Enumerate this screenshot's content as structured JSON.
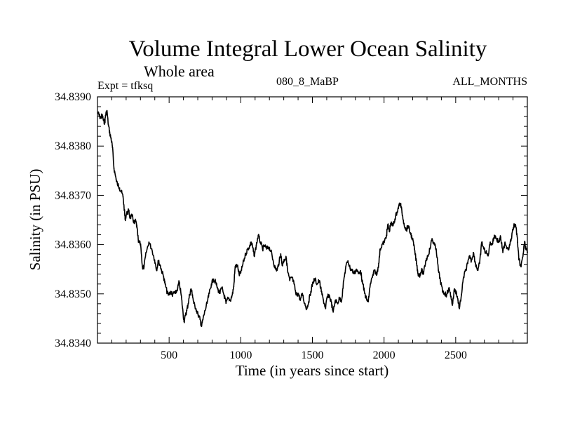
{
  "chart_data": {
    "type": "line",
    "title": "Volume Integral Lower Ocean Salinity",
    "subtitle": "Whole area",
    "annotations": {
      "experiment": "Expt = tfksq",
      "case": "080_8_MaBP",
      "months": "ALL_MONTHS"
    },
    "xlabel": "Time (in years since start)",
    "ylabel": "Salinity (in PSU)",
    "xlim": [
      0,
      3000
    ],
    "ylim": [
      34.834,
      34.839
    ],
    "x_ticks": [
      500,
      1000,
      1500,
      2000,
      2500
    ],
    "x_tick_labels": [
      "500",
      "1000",
      "1500",
      "2000",
      "2500"
    ],
    "x_minor_step": 100,
    "y_ticks": [
      34.834,
      34.835,
      34.836,
      34.837,
      34.838,
      34.839
    ],
    "y_tick_labels": [
      "34.8340",
      "34.8350",
      "34.8360",
      "34.8370",
      "34.8380",
      "34.8390"
    ],
    "y_minor_step": 0.0002,
    "grid": false,
    "legend": "none",
    "series": [
      {
        "name": "salinity",
        "color": "#000000",
        "x": [
          2,
          12,
          22,
          32,
          42,
          51,
          56,
          66,
          76,
          86,
          95,
          105,
          115,
          130,
          139,
          154,
          164,
          178,
          188,
          193,
          203,
          218,
          227,
          242,
          257,
          267,
          276,
          286,
          301,
          315,
          325,
          340,
          359,
          379,
          399,
          413,
          423,
          438,
          447,
          462,
          472,
          487,
          496,
          511,
          521,
          535,
          545,
          560,
          570,
          584,
          594,
          604,
          614,
          623,
          633,
          643,
          653,
          663,
          672,
          687,
          702,
          716,
          726,
          736,
          751,
          765,
          780,
          795,
          809,
          824,
          839,
          853,
          868,
          883,
          897,
          912,
          927,
          941,
          951,
          961,
          976,
          990,
          1005,
          1020,
          1034,
          1049,
          1064,
          1073,
          1083,
          1093,
          1108,
          1122,
          1137,
          1152,
          1166,
          1181,
          1196,
          1210,
          1225,
          1240,
          1254,
          1269,
          1279,
          1289,
          1303,
          1318,
          1328,
          1342,
          1357,
          1372,
          1386,
          1401,
          1416,
          1430,
          1445,
          1460,
          1474,
          1489,
          1504,
          1518,
          1533,
          1548,
          1562,
          1577,
          1592,
          1601,
          1616,
          1631,
          1645,
          1660,
          1675,
          1689,
          1704,
          1719,
          1733,
          1748,
          1763,
          1777,
          1792,
          1807,
          1821,
          1836,
          1851,
          1865,
          1880,
          1890,
          1904,
          1919,
          1934,
          1948,
          1963,
          1973,
          1988,
          2002,
          2017,
          2027,
          2037,
          2046,
          2061,
          2076,
          2090,
          2105,
          2115,
          2125,
          2139,
          2154,
          2168,
          2183,
          2198,
          2212,
          2227,
          2237,
          2247,
          2261,
          2276,
          2291,
          2305,
          2320,
          2335,
          2349,
          2364,
          2379,
          2393,
          2408,
          2423,
          2437,
          2452,
          2467,
          2477,
          2491,
          2506,
          2516,
          2526,
          2540,
          2555,
          2570,
          2584,
          2599,
          2609,
          2623,
          2638,
          2653,
          2667,
          2682,
          2697,
          2711,
          2726,
          2741,
          2756,
          2770,
          2785,
          2800,
          2814,
          2829,
          2844,
          2858,
          2873,
          2888,
          2902,
          2912,
          2922,
          2932,
          2941,
          2956,
          2971,
          2980,
          2990,
          3000
        ],
        "y": [
          34.83869,
          34.83862,
          34.83857,
          34.83863,
          34.83852,
          34.83847,
          34.83862,
          34.83872,
          34.83843,
          34.83826,
          34.83815,
          34.83797,
          34.83755,
          34.83733,
          34.83723,
          34.83715,
          34.83709,
          34.83698,
          34.83669,
          34.83652,
          34.83662,
          34.83669,
          34.83655,
          34.83658,
          34.83643,
          34.83648,
          34.83634,
          34.83605,
          34.83601,
          34.83551,
          34.83555,
          34.83584,
          34.83605,
          34.83591,
          34.83569,
          34.83548,
          34.83567,
          34.83558,
          34.83548,
          34.83534,
          34.8352,
          34.83502,
          34.83498,
          34.83505,
          34.83498,
          34.83502,
          34.83501,
          34.83512,
          34.83524,
          34.83498,
          34.8347,
          34.83444,
          34.83456,
          34.83466,
          34.8348,
          34.83498,
          34.8351,
          34.83498,
          34.83481,
          34.8347,
          34.83458,
          34.83448,
          34.83434,
          34.83448,
          34.83466,
          34.83481,
          34.83501,
          34.8352,
          34.8353,
          34.83524,
          34.8351,
          34.83501,
          34.83512,
          34.83498,
          34.83481,
          34.83491,
          34.83487,
          34.83498,
          34.83515,
          34.83555,
          34.83558,
          34.83537,
          34.83548,
          34.83567,
          34.83581,
          34.83591,
          34.83598,
          34.83605,
          34.83595,
          34.83577,
          34.83598,
          34.83619,
          34.83605,
          34.83591,
          34.83598,
          34.83591,
          34.83595,
          34.83587,
          34.83569,
          34.83552,
          34.83548,
          34.83567,
          34.83581,
          34.83558,
          34.8357,
          34.83572,
          34.83544,
          34.83527,
          34.83534,
          34.8352,
          34.83498,
          34.83501,
          34.83487,
          34.83501,
          34.83481,
          34.8347,
          34.83484,
          34.83505,
          34.83524,
          34.8353,
          34.8352,
          34.83527,
          34.83505,
          34.83487,
          34.8347,
          34.83491,
          34.83498,
          34.83484,
          34.83463,
          34.83487,
          34.83481,
          34.83491,
          34.83487,
          34.83527,
          34.83555,
          34.83567,
          34.83552,
          34.83548,
          34.83541,
          34.8355,
          34.83541,
          34.83547,
          34.8352,
          34.83501,
          34.83487,
          34.83484,
          34.8352,
          34.83534,
          34.83548,
          34.83538,
          34.83562,
          34.83591,
          34.83601,
          34.83605,
          34.83619,
          34.83641,
          34.83626,
          34.83643,
          34.83638,
          34.83652,
          34.83666,
          34.83681,
          34.83683,
          34.83666,
          34.83643,
          34.83629,
          34.83638,
          34.83624,
          34.83612,
          34.83591,
          34.83562,
          34.83541,
          34.83537,
          34.83548,
          34.83541,
          34.83567,
          34.83577,
          34.83591,
          34.83612,
          34.83601,
          34.83591,
          34.83548,
          34.83527,
          34.83505,
          34.83501,
          34.83498,
          34.83512,
          34.83495,
          34.83477,
          34.8351,
          34.83501,
          34.83487,
          34.8347,
          34.83498,
          34.83534,
          34.83548,
          34.83562,
          34.83577,
          34.83567,
          34.83584,
          34.83562,
          34.83548,
          34.83562,
          34.83605,
          34.83591,
          34.83584,
          34.83577,
          34.83605,
          34.83601,
          34.83619,
          34.83612,
          34.83605,
          34.83615,
          34.83584,
          34.83605,
          34.83594,
          34.83594,
          34.83612,
          34.83634,
          34.83641,
          34.83634,
          34.83605,
          34.83569,
          34.83555,
          34.83581,
          34.83605,
          34.83591,
          34.83584
        ]
      }
    ]
  }
}
